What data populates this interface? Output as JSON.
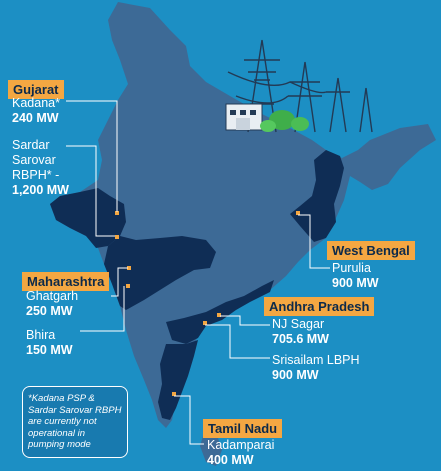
{
  "colors": {
    "ocean": "#1c8fc4",
    "land_light": "#3d6a96",
    "land_dark": "#0f2d55",
    "highlight_orange": "#f4a742",
    "text_white": "#ffffff"
  },
  "states": {
    "gujarat": {
      "label": "Gujarat",
      "plants": [
        {
          "name": "Kadana*",
          "capacity": "240 MW"
        },
        {
          "name": "Sardar Sarovar RBPH* -",
          "capacity": "1,200 MW"
        }
      ]
    },
    "maharashtra": {
      "label": "Maharashtra",
      "plants": [
        {
          "name": "Ghatgarh",
          "capacity": "250 MW"
        },
        {
          "name": "Bhira",
          "capacity": "150 MW"
        }
      ]
    },
    "west_bengal": {
      "label": "West Bengal",
      "plants": [
        {
          "name": "Purulia",
          "capacity": "900 MW"
        }
      ]
    },
    "andhra_pradesh": {
      "label": "Andhra Pradesh",
      "plants": [
        {
          "name": "NJ Sagar",
          "capacity": "705.6 MW"
        },
        {
          "name": "Srisailam LBPH",
          "capacity": "900 MW"
        }
      ]
    },
    "tamil_nadu": {
      "label": "Tamil Nadu",
      "plants": [
        {
          "name": "Kadamparai",
          "capacity": "400 MW"
        }
      ]
    }
  },
  "footnote": "*Kadana PSP & Sardar Sarovar RBPH are currently not operational in pumping mode",
  "illustration": "power-transmission-towers-illustration"
}
